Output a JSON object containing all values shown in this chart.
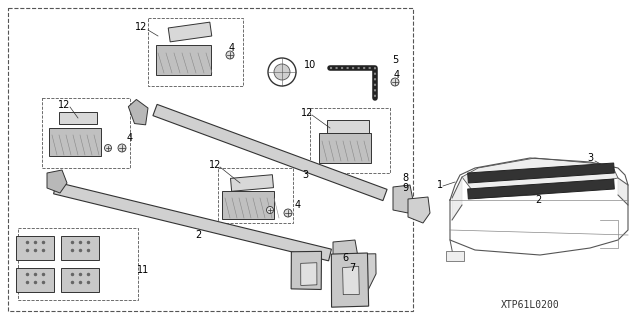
{
  "bg_color": "#ffffff",
  "caption": "XTP61L0200",
  "caption_fontsize": 7,
  "label_fontsize": 7,
  "lc": "#333333"
}
